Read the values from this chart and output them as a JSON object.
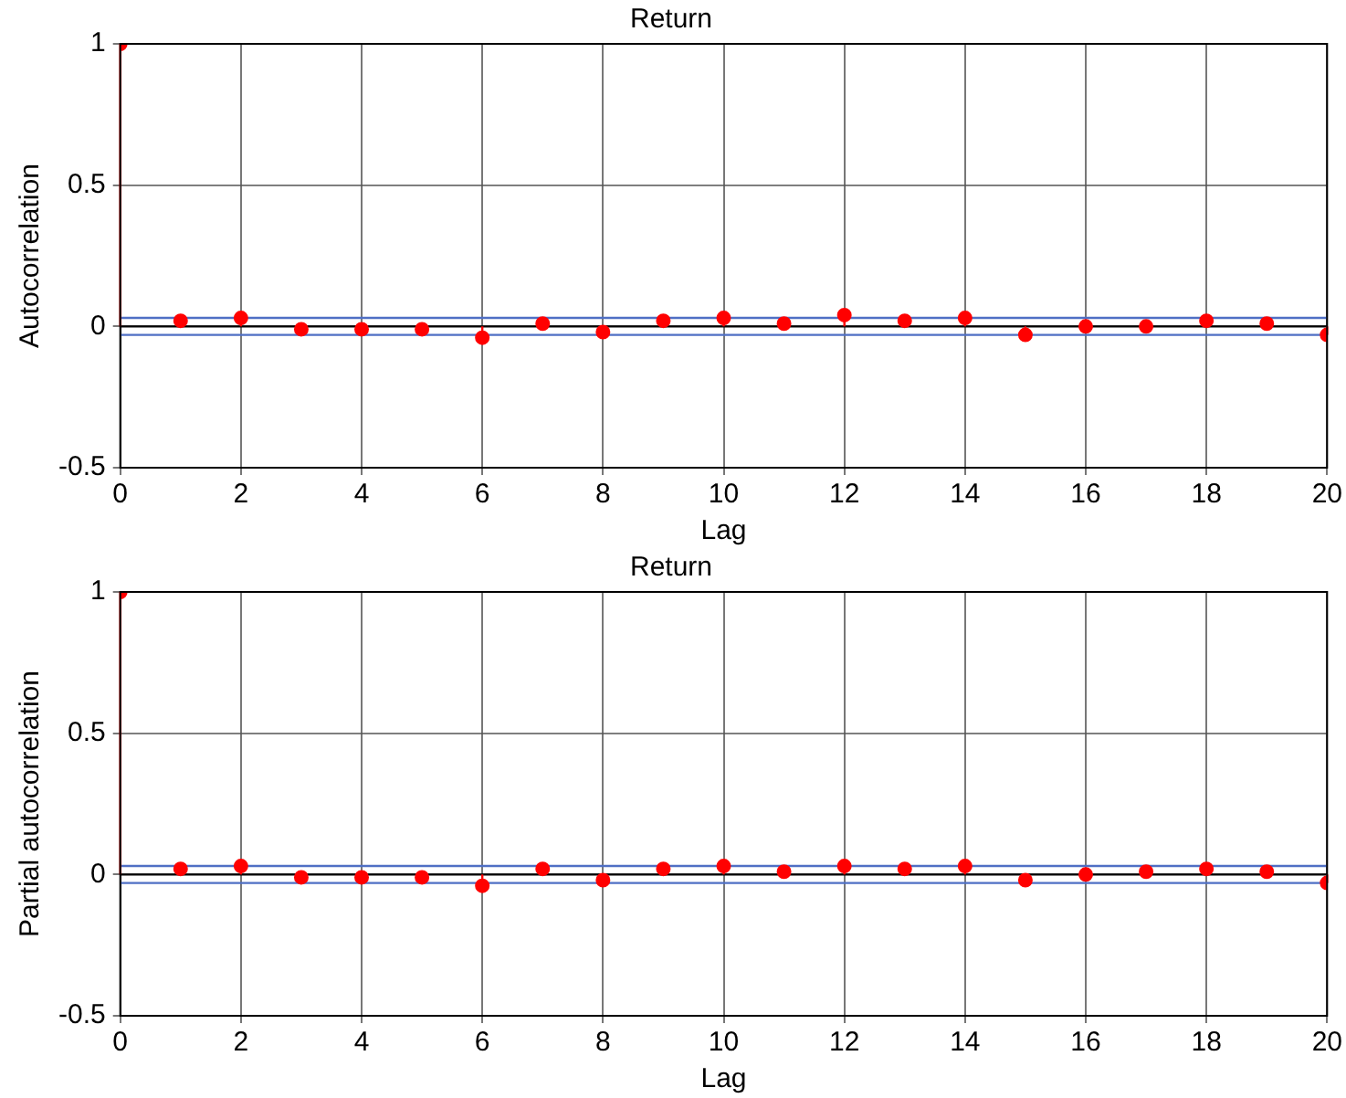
{
  "chart_data": [
    {
      "type": "lollipop",
      "title": "Return",
      "xlabel": "Lag",
      "ylabel": "Autocorrelation",
      "x": [
        0,
        1,
        2,
        3,
        4,
        5,
        6,
        7,
        8,
        9,
        10,
        11,
        12,
        13,
        14,
        15,
        16,
        17,
        18,
        19,
        20
      ],
      "series": [
        {
          "color": "#ff0000",
          "values": [
            1,
            0.02,
            0.03,
            -0.01,
            -0.01,
            -0.01,
            -0.04,
            0.01,
            -0.02,
            0.02,
            0.03,
            0.01,
            0.04,
            0.02,
            0.03,
            -0.03,
            0,
            0,
            0.02,
            0.01,
            -0.03
          ]
        }
      ],
      "xlim": [
        0,
        20
      ],
      "xticks": [
        0,
        2,
        4,
        6,
        8,
        10,
        12,
        14,
        16,
        18,
        20
      ],
      "ylim": [
        -0.5,
        1
      ],
      "yticks": [
        -0.5,
        0,
        0.5,
        1
      ],
      "grid": true,
      "marker": "circle",
      "legend": false,
      "ref_lines": [
        {
          "axis": "y",
          "value": 0.03,
          "color": "#4f6fc4"
        },
        {
          "axis": "y",
          "value": -0.03,
          "color": "#4f6fc4"
        },
        {
          "axis": "y",
          "value": 0,
          "color": "#000000"
        }
      ]
    },
    {
      "type": "lollipop",
      "title": "Return",
      "xlabel": "Lag",
      "ylabel": "Partial autocorrelation",
      "x": [
        0,
        1,
        2,
        3,
        4,
        5,
        6,
        7,
        8,
        9,
        10,
        11,
        12,
        13,
        14,
        15,
        16,
        17,
        18,
        19,
        20
      ],
      "series": [
        {
          "color": "#ff0000",
          "values": [
            1,
            0.02,
            0.03,
            -0.01,
            -0.01,
            -0.01,
            -0.04,
            0.02,
            -0.02,
            0.02,
            0.03,
            0.01,
            0.03,
            0.02,
            0.03,
            -0.02,
            0,
            0.01,
            0.02,
            0.01,
            -0.03
          ]
        }
      ],
      "xlim": [
        0,
        20
      ],
      "xticks": [
        0,
        2,
        4,
        6,
        8,
        10,
        12,
        14,
        16,
        18,
        20
      ],
      "ylim": [
        -0.5,
        1
      ],
      "yticks": [
        -0.5,
        0,
        0.5,
        1
      ],
      "grid": true,
      "marker": "circle",
      "legend": false,
      "ref_lines": [
        {
          "axis": "y",
          "value": 0.03,
          "color": "#4f6fc4"
        },
        {
          "axis": "y",
          "value": -0.03,
          "color": "#4f6fc4"
        },
        {
          "axis": "y",
          "value": 0,
          "color": "#000000"
        }
      ]
    }
  ]
}
